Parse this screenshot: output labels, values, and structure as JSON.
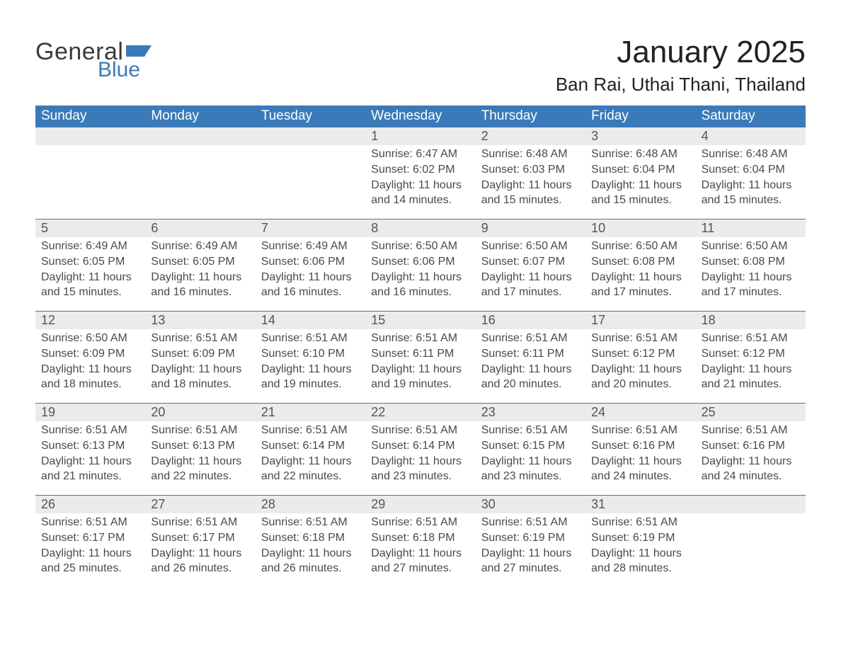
{
  "logo": {
    "general": "General",
    "blue": "Blue"
  },
  "title": "January 2025",
  "location": "Ban Rai, Uthai Thani, Thailand",
  "colors": {
    "header_blue": "#3b7ab8",
    "date_row_bg": "#ebebeb",
    "text_dark": "#333333",
    "row_divider": "#3b7ab8",
    "page_bg": "#ffffff"
  },
  "weekdays": [
    "Sunday",
    "Monday",
    "Tuesday",
    "Wednesday",
    "Thursday",
    "Friday",
    "Saturday"
  ],
  "calendar": {
    "type": "table",
    "columns": 7,
    "weeks": [
      [
        null,
        null,
        null,
        {
          "date": "1",
          "sunrise": "6:47 AM",
          "sunset": "6:02 PM",
          "daylight_hours": 11,
          "daylight_minutes": 14
        },
        {
          "date": "2",
          "sunrise": "6:48 AM",
          "sunset": "6:03 PM",
          "daylight_hours": 11,
          "daylight_minutes": 15
        },
        {
          "date": "3",
          "sunrise": "6:48 AM",
          "sunset": "6:04 PM",
          "daylight_hours": 11,
          "daylight_minutes": 15
        },
        {
          "date": "4",
          "sunrise": "6:48 AM",
          "sunset": "6:04 PM",
          "daylight_hours": 11,
          "daylight_minutes": 15
        }
      ],
      [
        {
          "date": "5",
          "sunrise": "6:49 AM",
          "sunset": "6:05 PM",
          "daylight_hours": 11,
          "daylight_minutes": 15
        },
        {
          "date": "6",
          "sunrise": "6:49 AM",
          "sunset": "6:05 PM",
          "daylight_hours": 11,
          "daylight_minutes": 16
        },
        {
          "date": "7",
          "sunrise": "6:49 AM",
          "sunset": "6:06 PM",
          "daylight_hours": 11,
          "daylight_minutes": 16
        },
        {
          "date": "8",
          "sunrise": "6:50 AM",
          "sunset": "6:06 PM",
          "daylight_hours": 11,
          "daylight_minutes": 16
        },
        {
          "date": "9",
          "sunrise": "6:50 AM",
          "sunset": "6:07 PM",
          "daylight_hours": 11,
          "daylight_minutes": 17
        },
        {
          "date": "10",
          "sunrise": "6:50 AM",
          "sunset": "6:08 PM",
          "daylight_hours": 11,
          "daylight_minutes": 17
        },
        {
          "date": "11",
          "sunrise": "6:50 AM",
          "sunset": "6:08 PM",
          "daylight_hours": 11,
          "daylight_minutes": 17
        }
      ],
      [
        {
          "date": "12",
          "sunrise": "6:50 AM",
          "sunset": "6:09 PM",
          "daylight_hours": 11,
          "daylight_minutes": 18
        },
        {
          "date": "13",
          "sunrise": "6:51 AM",
          "sunset": "6:09 PM",
          "daylight_hours": 11,
          "daylight_minutes": 18
        },
        {
          "date": "14",
          "sunrise": "6:51 AM",
          "sunset": "6:10 PM",
          "daylight_hours": 11,
          "daylight_minutes": 19
        },
        {
          "date": "15",
          "sunrise": "6:51 AM",
          "sunset": "6:11 PM",
          "daylight_hours": 11,
          "daylight_minutes": 19
        },
        {
          "date": "16",
          "sunrise": "6:51 AM",
          "sunset": "6:11 PM",
          "daylight_hours": 11,
          "daylight_minutes": 20
        },
        {
          "date": "17",
          "sunrise": "6:51 AM",
          "sunset": "6:12 PM",
          "daylight_hours": 11,
          "daylight_minutes": 20
        },
        {
          "date": "18",
          "sunrise": "6:51 AM",
          "sunset": "6:12 PM",
          "daylight_hours": 11,
          "daylight_minutes": 21
        }
      ],
      [
        {
          "date": "19",
          "sunrise": "6:51 AM",
          "sunset": "6:13 PM",
          "daylight_hours": 11,
          "daylight_minutes": 21
        },
        {
          "date": "20",
          "sunrise": "6:51 AM",
          "sunset": "6:13 PM",
          "daylight_hours": 11,
          "daylight_minutes": 22
        },
        {
          "date": "21",
          "sunrise": "6:51 AM",
          "sunset": "6:14 PM",
          "daylight_hours": 11,
          "daylight_minutes": 22
        },
        {
          "date": "22",
          "sunrise": "6:51 AM",
          "sunset": "6:14 PM",
          "daylight_hours": 11,
          "daylight_minutes": 23
        },
        {
          "date": "23",
          "sunrise": "6:51 AM",
          "sunset": "6:15 PM",
          "daylight_hours": 11,
          "daylight_minutes": 23
        },
        {
          "date": "24",
          "sunrise": "6:51 AM",
          "sunset": "6:16 PM",
          "daylight_hours": 11,
          "daylight_minutes": 24
        },
        {
          "date": "25",
          "sunrise": "6:51 AM",
          "sunset": "6:16 PM",
          "daylight_hours": 11,
          "daylight_minutes": 24
        }
      ],
      [
        {
          "date": "26",
          "sunrise": "6:51 AM",
          "sunset": "6:17 PM",
          "daylight_hours": 11,
          "daylight_minutes": 25
        },
        {
          "date": "27",
          "sunrise": "6:51 AM",
          "sunset": "6:17 PM",
          "daylight_hours": 11,
          "daylight_minutes": 26
        },
        {
          "date": "28",
          "sunrise": "6:51 AM",
          "sunset": "6:18 PM",
          "daylight_hours": 11,
          "daylight_minutes": 26
        },
        {
          "date": "29",
          "sunrise": "6:51 AM",
          "sunset": "6:18 PM",
          "daylight_hours": 11,
          "daylight_minutes": 27
        },
        {
          "date": "30",
          "sunrise": "6:51 AM",
          "sunset": "6:19 PM",
          "daylight_hours": 11,
          "daylight_minutes": 27
        },
        {
          "date": "31",
          "sunrise": "6:51 AM",
          "sunset": "6:19 PM",
          "daylight_hours": 11,
          "daylight_minutes": 28
        },
        null
      ]
    ]
  },
  "labels": {
    "sunrise_prefix": "Sunrise: ",
    "sunset_prefix": "Sunset: ",
    "daylight_prefix": "Daylight: ",
    "hours_word": " hours",
    "and_word": "and ",
    "minutes_word": " minutes."
  }
}
